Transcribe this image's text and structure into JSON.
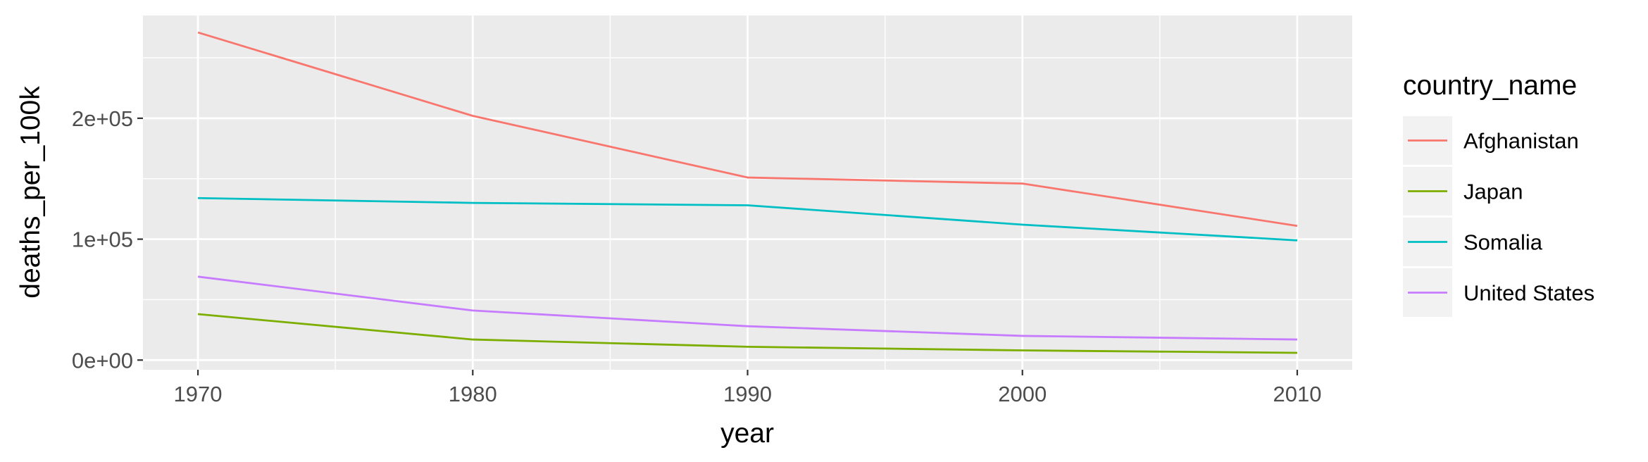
{
  "chart_data": {
    "type": "line",
    "xlabel": "year",
    "ylabel": "deaths_per_100k",
    "x": [
      1970,
      1980,
      1990,
      2000,
      2010
    ],
    "xlim": [
      1968,
      2012
    ],
    "ylim": [
      -8000,
      285000
    ],
    "x_ticks": [
      1970,
      1980,
      1990,
      2000,
      2010
    ],
    "x_tick_labels": [
      "1970",
      "1980",
      "1990",
      "2000",
      "2010"
    ],
    "y_ticks": [
      0,
      100000,
      200000
    ],
    "y_tick_labels": [
      "0e+00",
      "1e+05",
      "2e+05"
    ],
    "grid": true,
    "legend": {
      "title": "country_name",
      "position": "right"
    },
    "series": [
      {
        "name": "Afghanistan",
        "color": "#F8766D",
        "values": [
          271000,
          202000,
          151000,
          146000,
          111000
        ]
      },
      {
        "name": "Japan",
        "color": "#7CAE00",
        "values": [
          38000,
          17000,
          11000,
          8000,
          6000
        ]
      },
      {
        "name": "Somalia",
        "color": "#00BFC4",
        "values": [
          134000,
          130000,
          128000,
          112000,
          99000
        ]
      },
      {
        "name": "United States",
        "color": "#C77CFF",
        "values": [
          69000,
          41000,
          28000,
          20000,
          17000
        ]
      }
    ]
  }
}
